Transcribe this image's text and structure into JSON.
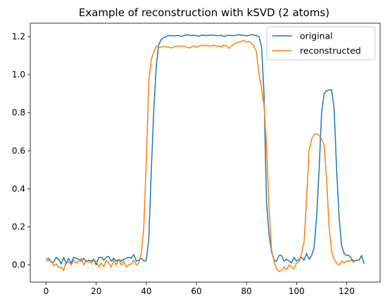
{
  "chart_data": {
    "type": "line",
    "title": "Example of reconstruction with kSVD (2 atoms)",
    "xlabel": "",
    "ylabel": "",
    "xlim": [
      -6.35,
      133.35
    ],
    "ylim": [
      -0.09,
      1.27
    ],
    "xticks": [
      0,
      20,
      40,
      60,
      80,
      100,
      120
    ],
    "xtick_labels": [
      "0",
      "20",
      "40",
      "60",
      "80",
      "100",
      "120"
    ],
    "yticks": [
      0.0,
      0.2,
      0.4,
      0.6,
      0.8,
      1.0,
      1.2
    ],
    "ytick_labels": [
      "0.0",
      "0.2",
      "0.4",
      "0.6",
      "0.8",
      "1.0",
      "1.2"
    ],
    "grid": false,
    "legend": "top-right",
    "series": [
      {
        "name": "original",
        "color": "#1f77b4",
        "y": [
          0.03,
          0.035,
          0.015,
          0.015,
          0.04,
          0.03,
          0.005,
          0.04,
          0.005,
          0.035,
          0.01,
          0.04,
          0.035,
          0.03,
          0.02,
          0.035,
          0.015,
          0.025,
          0.02,
          0.03,
          0.0,
          0.04,
          0.04,
          0.025,
          0.04,
          0.045,
          0.02,
          0.035,
          0.02,
          0.03,
          0.02,
          0.03,
          0.035,
          0.04,
          0.035,
          0.055,
          0.02,
          0.025,
          0.035,
          0.02,
          0.025,
          0.14,
          0.5,
          0.82,
          1.05,
          1.16,
          1.185,
          1.195,
          1.2,
          1.205,
          1.205,
          1.203,
          1.205,
          1.205,
          1.2,
          1.205,
          1.21,
          1.208,
          1.205,
          1.207,
          1.205,
          1.202,
          1.207,
          1.207,
          1.205,
          1.207,
          1.207,
          1.207,
          1.205,
          1.205,
          1.207,
          1.2,
          1.205,
          1.207,
          1.205,
          1.205,
          1.207,
          1.21,
          1.206,
          1.207,
          1.203,
          1.207,
          1.21,
          1.207,
          1.205,
          1.2,
          1.15,
          0.9,
          0.33,
          0.16,
          0.07,
          0.025,
          0.02,
          0.05,
          0.05,
          0.02,
          0.03,
          0.02,
          0.01,
          0.04,
          0.02,
          0.03,
          0.04,
          0.025,
          0.06,
          0.03,
          0.05,
          0.09,
          0.25,
          0.5,
          0.8,
          0.9,
          0.915,
          0.92,
          0.92,
          0.82,
          0.5,
          0.25,
          0.1,
          0.06,
          0.05,
          0.05,
          0.03,
          0.02,
          0.025,
          0.025,
          0.05,
          0.005
        ]
      },
      {
        "name": "reconstructed",
        "color": "#ff7f0e",
        "y": [
          0.02,
          0.025,
          0.02,
          -0.005,
          0.005,
          -0.015,
          -0.01,
          -0.03,
          0.02,
          0.015,
          0.0,
          0.025,
          0.01,
          0.02,
          0.035,
          0.0,
          0.025,
          0.015,
          0.01,
          0.025,
          0.02,
          -0.01,
          0.01,
          -0.01,
          0.025,
          0.01,
          -0.01,
          0.025,
          0.0,
          0.03,
          0.0,
          0.02,
          -0.01,
          0.0,
          0.005,
          0.025,
          0.0,
          0.01,
          0.06,
          0.2,
          0.55,
          0.97,
          1.08,
          1.12,
          1.15,
          1.14,
          1.145,
          1.148,
          1.145,
          1.145,
          1.14,
          1.145,
          1.15,
          1.148,
          1.15,
          1.15,
          1.145,
          1.14,
          1.145,
          1.15,
          1.143,
          1.15,
          1.155,
          1.152,
          1.154,
          1.15,
          1.15,
          1.155,
          1.15,
          1.15,
          1.145,
          1.155,
          1.15,
          1.138,
          1.15,
          1.16,
          1.168,
          1.17,
          1.175,
          1.18,
          1.17,
          1.175,
          1.165,
          1.15,
          1.12,
          1.0,
          0.93,
          0.84,
          0.62,
          0.3,
          0.08,
          0.02,
          -0.02,
          -0.035,
          -0.03,
          -0.01,
          -0.025,
          0.0,
          -0.01,
          -0.02,
          0.01,
          0.015,
          0.06,
          0.12,
          0.35,
          0.6,
          0.66,
          0.685,
          0.69,
          0.68,
          0.66,
          0.63,
          0.45,
          0.2,
          0.07,
          0.03,
          0.01,
          0.0,
          0.02,
          0.01,
          0.02,
          0.02,
          0.025,
          0.01
        ]
      }
    ]
  }
}
